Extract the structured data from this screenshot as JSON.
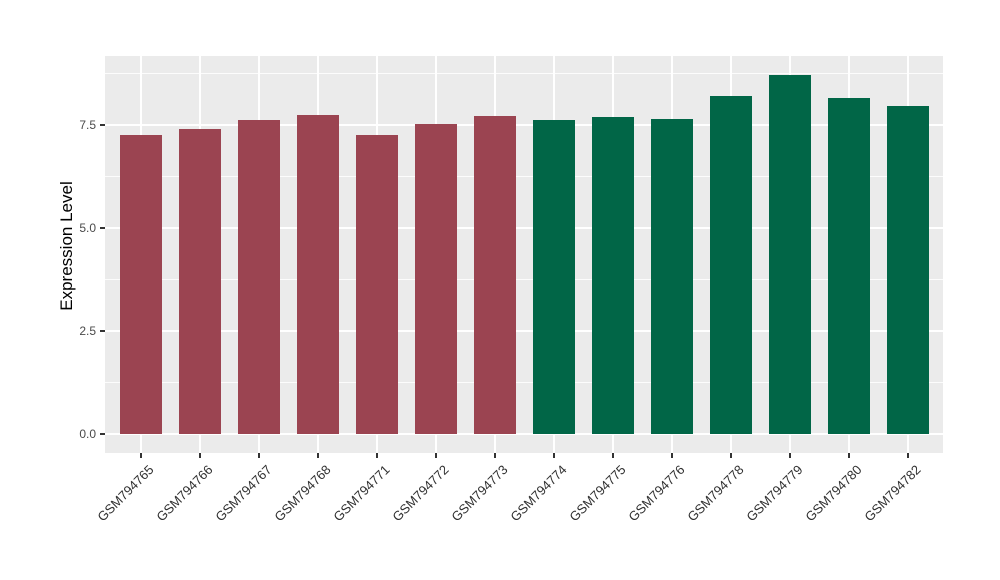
{
  "chart_data": {
    "type": "bar",
    "title": "",
    "xlabel": "",
    "ylabel": "Expression Level",
    "categories": [
      "GSM794765",
      "GSM794766",
      "GSM794767",
      "GSM794768",
      "GSM794771",
      "GSM794772",
      "GSM794773",
      "GSM794774",
      "GSM794775",
      "GSM794776",
      "GSM794778",
      "GSM794779",
      "GSM794780",
      "GSM794782"
    ],
    "values": [
      7.25,
      7.4,
      7.62,
      7.75,
      7.25,
      7.53,
      7.73,
      7.62,
      7.69,
      7.64,
      8.21,
      8.72,
      8.15,
      7.96
    ],
    "bar_groups": [
      "A",
      "A",
      "A",
      "A",
      "A",
      "A",
      "A",
      "B",
      "B",
      "B",
      "B",
      "B",
      "B",
      "B"
    ],
    "group_colors": {
      "A": "#9B4451",
      "B": "#016647"
    },
    "ytick_labels": [
      "0.0",
      "2.5",
      "5.0",
      "7.5"
    ],
    "ytick_values": [
      0,
      2.5,
      5,
      7.5
    ],
    "yminor_values": [
      1.25,
      3.75,
      6.25,
      8.75
    ],
    "ylim": [
      -0.46,
      9.17
    ],
    "grid": true,
    "legend_position": "none",
    "panel_bg": "#EBEBEB",
    "grid_color": "#FFFFFF"
  }
}
